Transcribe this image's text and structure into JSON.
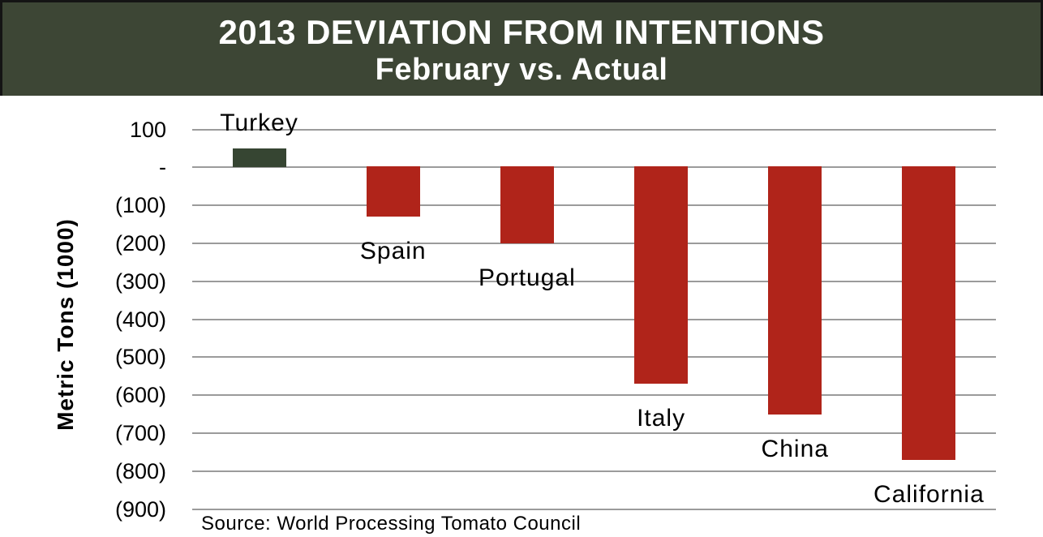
{
  "header": {
    "title": "2013 DEVIATION FROM INTENTIONS",
    "subtitle": "February vs. Actual",
    "bg_color": "#3d4635",
    "text_color": "#ffffff"
  },
  "y_axis": {
    "title": "Metric Tons (1000)",
    "tick_labels": [
      "100",
      "-",
      "(100)",
      "(200)",
      "(300)",
      "(400)",
      "(500)",
      "(600)",
      "(700)",
      "(800)",
      "(900)"
    ],
    "tick_values": [
      100,
      0,
      -100,
      -200,
      -300,
      -400,
      -500,
      -600,
      -700,
      -800,
      -900
    ]
  },
  "chart_data": {
    "type": "bar",
    "categories": [
      "Turkey",
      "Spain",
      "Portugal",
      "Italy",
      "China",
      "California"
    ],
    "values": [
      50,
      -130,
      -200,
      -570,
      -650,
      -770
    ],
    "title": "2013 Deviation from Intentions",
    "subtitle": "February vs. Actual",
    "xlabel": "",
    "ylabel": "Metric Tons (1000)",
    "ylim": [
      -900,
      100
    ],
    "grid": true,
    "legend": false,
    "positive_color": "#364532",
    "negative_color": "#b0241a",
    "gridline_color": "#9b9b9b"
  },
  "source": {
    "text": "Source: World Processing Tomato Council"
  }
}
